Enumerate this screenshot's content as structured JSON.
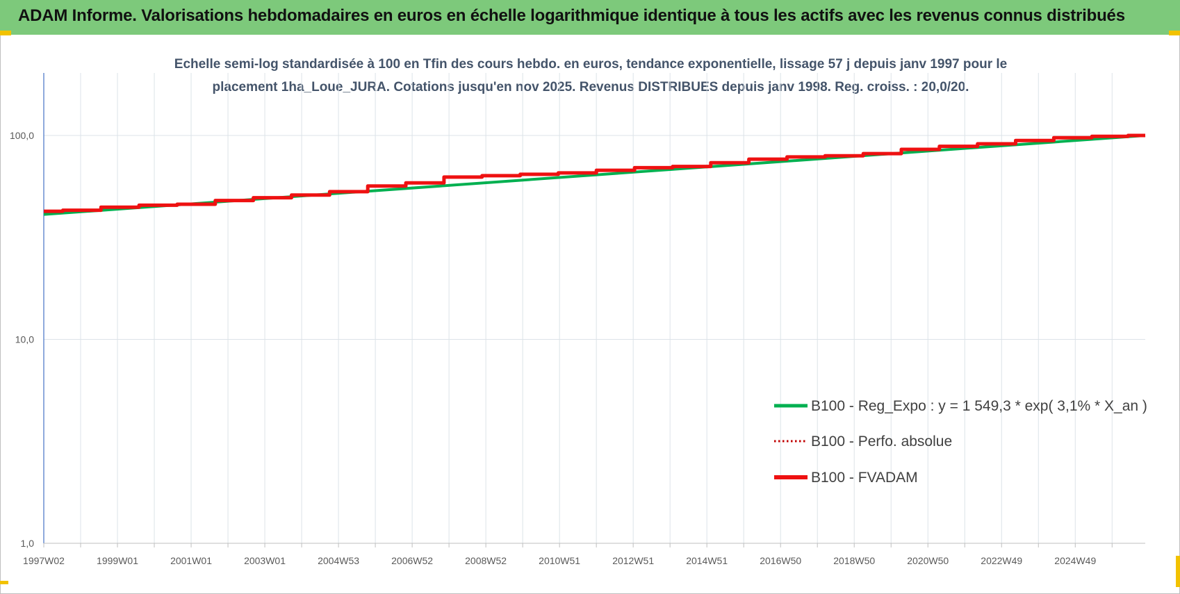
{
  "header": {
    "title": "ADAM Informe. Valorisations hebdomadaires en euros en échelle logarithmique identique à tous les actifs avec les revenus connus distribués"
  },
  "colors": {
    "banner": "#7dc97b",
    "reg_expo": "#00b050",
    "perfo_absolue": "#c00000",
    "fvadam": "#ee1111",
    "grid": "#dce3e8"
  },
  "chart_data": {
    "type": "line",
    "title_line1": "Echelle semi-log standardisée à 100 en Tfin des cours hebdo. en euros, tendance exponentielle, lissage 57 j depuis janv 1997 pour le",
    "title_line2": "placement 1ha_Loue_JURA. Cotations jusqu'en nov 2025. Revenus DISTRIBUES depuis janv 1998. Reg. croiss. : 20,0/20.",
    "y_scale": "log",
    "ylim": [
      1,
      100
    ],
    "y_ticks": [
      "1,0",
      "10,0",
      "100,0"
    ],
    "x_ticks": [
      "1997W02",
      "1999W01",
      "2001W01",
      "2003W01",
      "2004W53",
      "2006W52",
      "2008W52",
      "2010W51",
      "2012W51",
      "2014W51",
      "2016W50",
      "2018W50",
      "2020W50",
      "2022W49",
      "2024W49"
    ],
    "xlim": [
      1997.0,
      2025.9
    ],
    "grid": true,
    "legend_position": "bottom-right",
    "series": [
      {
        "name": "B100 - Reg_Expo : y = 1 549,3 * exp( 3,1% *  X_an )",
        "style": "solid",
        "color": "#00b050",
        "x": [
          1997.0,
          2025.9
        ],
        "y": [
          41.0,
          100.0
        ]
      },
      {
        "name": "B100 - Perfo. absolue",
        "style": "dotted",
        "color": "#c00000",
        "x": [
          1997.0,
          1998.0,
          1999.0,
          2000.0,
          2001.0,
          2002.0,
          2003.0,
          2004.0,
          2005.0,
          2006.0,
          2007.0,
          2008.0,
          2009.0,
          2010.0,
          2011.0,
          2012.0,
          2013.0,
          2014.0,
          2015.0,
          2016.0,
          2017.0,
          2018.0,
          2019.0,
          2020.0,
          2021.0,
          2022.0,
          2023.0,
          2024.0,
          2025.0,
          2025.9
        ],
        "y": [
          42.5,
          43.0,
          44.5,
          45.5,
          46.0,
          48.0,
          49.5,
          51.0,
          53.0,
          56.5,
          58.5,
          62.5,
          63.5,
          64.5,
          65.5,
          67.5,
          69.5,
          70.5,
          73.5,
          76.5,
          78.5,
          79.5,
          81.5,
          85.5,
          88.5,
          91.0,
          94.5,
          97.5,
          99.0,
          100.0
        ]
      },
      {
        "name": "B100 - FVADAM",
        "style": "solid",
        "color": "#ee1111",
        "x": [
          1997.0,
          1998.0,
          1999.0,
          2000.0,
          2001.0,
          2002.0,
          2003.0,
          2004.0,
          2005.0,
          2006.0,
          2007.0,
          2008.0,
          2009.0,
          2010.0,
          2011.0,
          2012.0,
          2013.0,
          2014.0,
          2015.0,
          2016.0,
          2017.0,
          2018.0,
          2019.0,
          2020.0,
          2021.0,
          2022.0,
          2023.0,
          2024.0,
          2025.0,
          2025.9
        ],
        "y": [
          42.5,
          43.0,
          44.5,
          45.5,
          46.0,
          48.0,
          49.5,
          51.0,
          53.0,
          56.5,
          58.5,
          62.5,
          63.5,
          64.5,
          65.5,
          67.5,
          69.5,
          70.5,
          73.5,
          76.5,
          78.5,
          79.5,
          81.5,
          85.5,
          88.5,
          91.0,
          94.5,
          97.5,
          99.0,
          100.0
        ]
      }
    ]
  }
}
